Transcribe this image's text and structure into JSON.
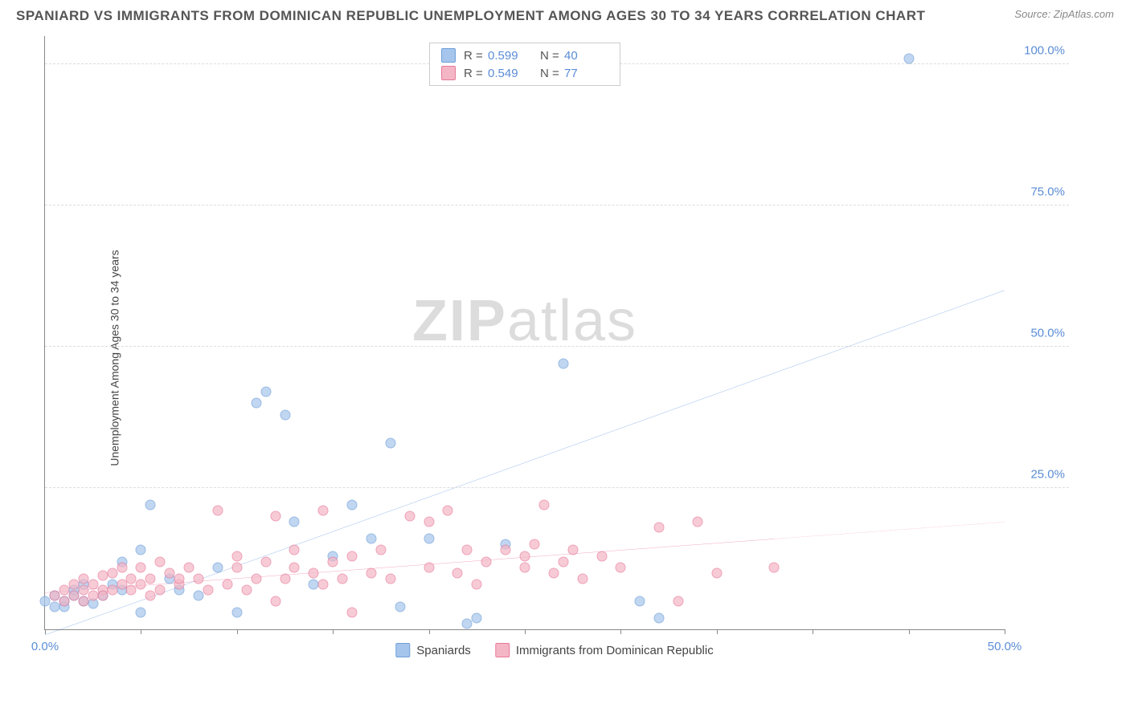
{
  "header": {
    "title": "SPANIARD VS IMMIGRANTS FROM DOMINICAN REPUBLIC UNEMPLOYMENT AMONG AGES 30 TO 34 YEARS CORRELATION CHART",
    "source_prefix": "Source:",
    "source_name": "ZipAtlas.com"
  },
  "y_axis_label": "Unemployment Among Ages 30 to 34 years",
  "watermark": {
    "part1": "ZIP",
    "part2": "atlas"
  },
  "chart": {
    "type": "scatter",
    "background_color": "#ffffff",
    "grid_color": "#dddddd",
    "axis_color": "#888888",
    "tick_label_color": "#5b8dd6",
    "xlim": [
      0,
      50
    ],
    "ylim": [
      0,
      105
    ],
    "x_ticks": [
      0,
      5,
      10,
      15,
      20,
      25,
      30,
      35,
      40,
      45,
      50
    ],
    "x_tick_labels": {
      "0": "0.0%",
      "50": "50.0%"
    },
    "y_ticks": [
      25,
      50,
      75,
      100
    ],
    "y_tick_labels": {
      "25": "25.0%",
      "50": "50.0%",
      "75": "75.0%",
      "100": "100.0%"
    },
    "marker_size": 13,
    "marker_opacity": 0.7,
    "series": [
      {
        "name": "Spaniards",
        "fill_color": "#a6c5ec",
        "stroke_color": "#6f9fd8",
        "trend_color": "#2b6cd1",
        "trend_width": 2,
        "R": "0.599",
        "N": "40",
        "trend": {
          "x1": 0,
          "y1": -1,
          "x2": 50,
          "y2": 60
        },
        "points": [
          [
            0,
            5
          ],
          [
            0.5,
            4
          ],
          [
            0.5,
            6
          ],
          [
            1,
            5
          ],
          [
            1,
            4
          ],
          [
            1.5,
            6
          ],
          [
            1.5,
            7
          ],
          [
            2,
            5
          ],
          [
            2,
            8
          ],
          [
            2.5,
            4.5
          ],
          [
            3,
            6
          ],
          [
            3.5,
            8
          ],
          [
            4,
            7
          ],
          [
            4,
            12
          ],
          [
            5,
            3
          ],
          [
            5,
            14
          ],
          [
            5.5,
            22
          ],
          [
            6.5,
            9
          ],
          [
            7,
            7
          ],
          [
            8,
            6
          ],
          [
            9,
            11
          ],
          [
            10,
            3
          ],
          [
            11,
            40
          ],
          [
            11.5,
            42
          ],
          [
            12.5,
            38
          ],
          [
            13,
            19
          ],
          [
            14,
            8
          ],
          [
            15,
            13
          ],
          [
            16,
            22
          ],
          [
            17,
            16
          ],
          [
            18,
            33
          ],
          [
            18.5,
            4
          ],
          [
            20,
            16
          ],
          [
            22,
            1
          ],
          [
            22.5,
            2
          ],
          [
            24,
            15
          ],
          [
            27,
            47
          ],
          [
            31,
            5
          ],
          [
            32,
            2
          ],
          [
            45,
            101
          ]
        ]
      },
      {
        "name": "Immigrants from Dominican Republic",
        "fill_color": "#f4b6c5",
        "stroke_color": "#e77a99",
        "trend_color": "#e24a76",
        "trend_width": 2,
        "R": "0.549",
        "N": "77",
        "trend": {
          "x1": 0,
          "y1": 6.5,
          "x2": 38,
          "y2": 16,
          "x2_ext": 50,
          "y2_ext": 19
        },
        "points": [
          [
            0.5,
            6
          ],
          [
            1,
            5
          ],
          [
            1,
            7
          ],
          [
            1.5,
            6
          ],
          [
            1.5,
            8
          ],
          [
            2,
            5
          ],
          [
            2,
            7
          ],
          [
            2,
            9
          ],
          [
            2.5,
            6
          ],
          [
            2.5,
            8
          ],
          [
            3,
            7
          ],
          [
            3,
            6
          ],
          [
            3,
            9.5
          ],
          [
            3.5,
            7
          ],
          [
            3.5,
            10
          ],
          [
            4,
            8
          ],
          [
            4,
            11
          ],
          [
            4.5,
            7
          ],
          [
            4.5,
            9
          ],
          [
            5,
            8
          ],
          [
            5,
            11
          ],
          [
            5.5,
            6
          ],
          [
            5.5,
            9
          ],
          [
            6,
            12
          ],
          [
            6,
            7
          ],
          [
            6.5,
            10
          ],
          [
            7,
            8
          ],
          [
            7,
            9
          ],
          [
            7.5,
            11
          ],
          [
            8,
            9
          ],
          [
            8.5,
            7
          ],
          [
            9,
            21
          ],
          [
            9.5,
            8
          ],
          [
            10,
            11
          ],
          [
            10,
            13
          ],
          [
            10.5,
            7
          ],
          [
            11,
            9
          ],
          [
            11.5,
            12
          ],
          [
            12,
            5
          ],
          [
            12,
            20
          ],
          [
            12.5,
            9
          ],
          [
            13,
            11
          ],
          [
            13,
            14
          ],
          [
            14,
            10
          ],
          [
            14.5,
            8
          ],
          [
            14.5,
            21
          ],
          [
            15,
            12
          ],
          [
            15.5,
            9
          ],
          [
            16,
            13
          ],
          [
            16,
            3
          ],
          [
            17,
            10
          ],
          [
            17.5,
            14
          ],
          [
            18,
            9
          ],
          [
            19,
            20
          ],
          [
            20,
            11
          ],
          [
            20,
            19
          ],
          [
            21,
            21
          ],
          [
            21.5,
            10
          ],
          [
            22,
            14
          ],
          [
            22.5,
            8
          ],
          [
            23,
            12
          ],
          [
            24,
            14
          ],
          [
            25,
            11
          ],
          [
            25,
            13
          ],
          [
            25.5,
            15
          ],
          [
            26,
            22
          ],
          [
            26.5,
            10
          ],
          [
            27,
            12
          ],
          [
            27.5,
            14
          ],
          [
            28,
            9
          ],
          [
            29,
            13
          ],
          [
            30,
            11
          ],
          [
            32,
            18
          ],
          [
            33,
            5
          ],
          [
            34,
            19
          ],
          [
            35,
            10
          ],
          [
            38,
            11
          ]
        ]
      }
    ]
  },
  "legend_bottom": {
    "items": [
      {
        "label": "Spaniards",
        "fill": "#a6c5ec",
        "stroke": "#6f9fd8"
      },
      {
        "label": "Immigrants from Dominican Republic",
        "fill": "#f4b6c5",
        "stroke": "#e77a99"
      }
    ]
  }
}
